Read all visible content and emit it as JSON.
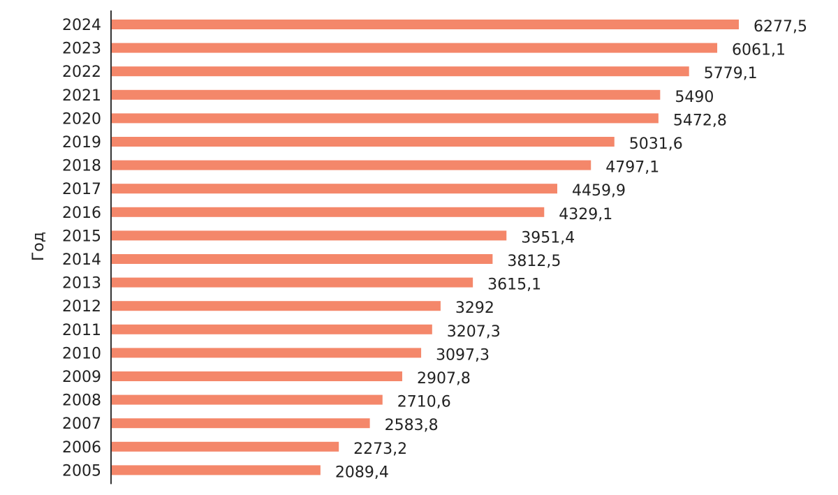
{
  "chart_data": {
    "type": "bar",
    "orientation": "horizontal",
    "ylabel": "Год",
    "xlabel": "",
    "categories": [
      "2024",
      "2023",
      "2022",
      "2021",
      "2020",
      "2019",
      "2018",
      "2017",
      "2016",
      "2015",
      "2014",
      "2013",
      "2012",
      "2011",
      "2010",
      "2009",
      "2008",
      "2007",
      "2006",
      "2005"
    ],
    "values": [
      6277.5,
      6061.1,
      5779.1,
      5490,
      5472.8,
      5031.6,
      4797.1,
      4459.9,
      4329.1,
      3951.4,
      3812.5,
      3615.1,
      3292,
      3207.3,
      3097.3,
      2907.8,
      2710.6,
      2583.8,
      2273.2,
      2089.4
    ],
    "value_labels": [
      "6277,5",
      "6061,1",
      "5779,1",
      "5490",
      "5472,8",
      "5031,6",
      "4797,1",
      "4459,9",
      "4329,1",
      "3951,4",
      "3812,5",
      "3615,1",
      "3292",
      "3207,3",
      "3097,3",
      "2907,8",
      "2710,6",
      "2583,8",
      "2273,2",
      "2089,4"
    ],
    "xlim": [
      0,
      6600
    ],
    "grid": false,
    "legend": "none",
    "bar_color": "#f4876a",
    "axis_color": "#333333",
    "text_color": "#222222"
  }
}
